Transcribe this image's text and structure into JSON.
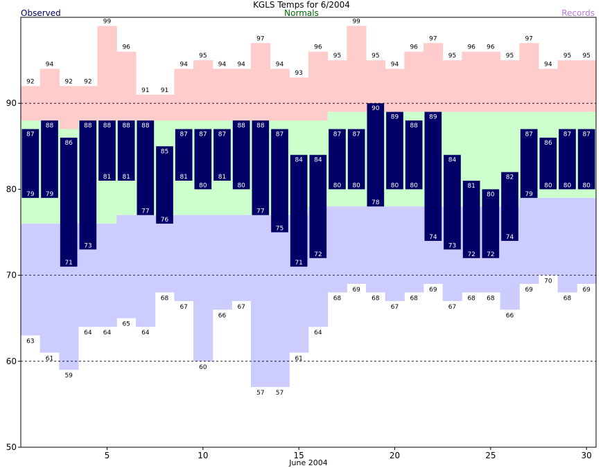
{
  "chart_data": {
    "type": "bar",
    "title": "KGLS Temps for 6/2004",
    "xlabel": "June 2004",
    "ylabel": "",
    "legend": [
      "Observed",
      "Normals",
      "Records"
    ],
    "xlim": [
      1,
      30
    ],
    "ylim": [
      50,
      100
    ],
    "x_ticks": [
      5,
      10,
      15,
      20,
      25,
      30
    ],
    "y_ticks": [
      50,
      60,
      70,
      80,
      90
    ],
    "dashed_gridlines": [
      60,
      70,
      90
    ],
    "days": [
      1,
      2,
      3,
      4,
      5,
      6,
      7,
      8,
      9,
      10,
      11,
      12,
      13,
      14,
      15,
      16,
      17,
      18,
      19,
      20,
      21,
      22,
      23,
      24,
      25,
      26,
      27,
      28,
      29,
      30
    ],
    "observed_high": [
      87,
      88,
      86,
      88,
      88,
      88,
      88,
      85,
      87,
      87,
      87,
      88,
      88,
      87,
      84,
      84,
      87,
      87,
      90,
      89,
      88,
      89,
      84,
      81,
      80,
      82,
      87,
      86,
      87,
      87
    ],
    "observed_low": [
      79,
      79,
      71,
      73,
      81,
      81,
      77,
      76,
      81,
      80,
      81,
      80,
      77,
      75,
      71,
      72,
      80,
      80,
      78,
      80,
      80,
      74,
      73,
      72,
      72,
      74,
      79,
      80,
      80,
      80
    ],
    "record_high": [
      92,
      94,
      92,
      92,
      99,
      96,
      91,
      91,
      94,
      95,
      94,
      94,
      97,
      94,
      93,
      96,
      95,
      99,
      95,
      94,
      96,
      97,
      95,
      96,
      96,
      95,
      97,
      94,
      95,
      95
    ],
    "record_low": [
      63,
      61,
      59,
      64,
      64,
      65,
      64,
      68,
      67,
      60,
      66,
      67,
      57,
      57,
      61,
      64,
      68,
      69,
      68,
      67,
      68,
      69,
      67,
      68,
      68,
      66,
      69,
      70,
      68,
      69
    ],
    "normal_high": [
      88,
      88,
      87,
      88,
      88,
      88,
      88,
      88,
      88,
      88,
      88,
      88,
      88,
      88,
      88,
      88,
      89,
      89,
      89,
      89,
      89,
      89,
      89,
      89,
      89,
      89,
      89,
      89,
      89,
      89
    ],
    "normal_low": [
      76,
      76,
      76,
      76,
      76,
      77,
      77,
      77,
      77,
      77,
      77,
      77,
      77,
      77,
      77,
      78,
      78,
      78,
      78,
      78,
      78,
      78,
      78,
      78,
      78,
      78,
      79,
      79,
      79,
      79
    ],
    "colors": {
      "observed": "#000066",
      "normals": "#ccffcc",
      "records_high": "#ffcccc",
      "records_low": "#ccccff",
      "title": "#000000",
      "observed_label": "#000066",
      "normals_label": "#006600",
      "records_label": "#bb77dd"
    }
  }
}
